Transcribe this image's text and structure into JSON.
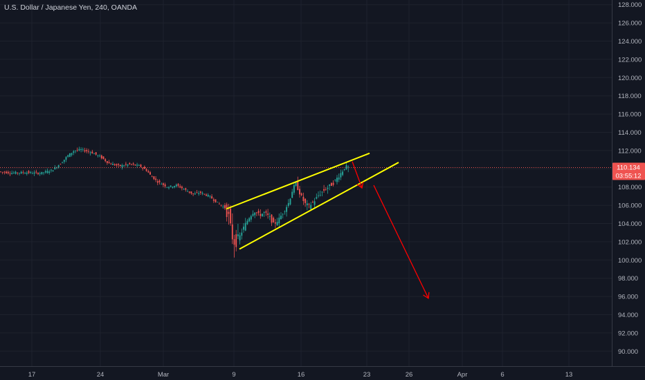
{
  "symbol_title": "U.S. Dollar / Japanese Yen, 240, OANDA",
  "colors": {
    "background": "#131722",
    "grid": "#1e222d",
    "axis_text": "#b2b5be",
    "up": "#26a69a",
    "down": "#ef5350",
    "trendline": "#ffff00",
    "arrow": "#ff0000",
    "price_line": "#ef5350"
  },
  "chart_data": {
    "type": "candlestick",
    "instrument": "USDJPY",
    "timeframe": "240",
    "source": "OANDA",
    "y_axis": {
      "ticks": [
        "128.000",
        "126.000",
        "124.000",
        "122.000",
        "120.000",
        "118.000",
        "116.000",
        "114.000",
        "112.000",
        "110.000",
        "108.000",
        "106.000",
        "104.000",
        "102.000",
        "100.000",
        "98.000",
        "96.000",
        "94.000",
        "92.000",
        "90.000"
      ],
      "range": [
        88.5,
        128.6
      ]
    },
    "x_axis": {
      "ticks": [
        "17",
        "24",
        "Mar",
        "9",
        "16",
        "23",
        "26",
        "Apr",
        "6",
        "13"
      ]
    },
    "last_price": {
      "value": "110.134",
      "countdown": "03:55:12"
    },
    "price_path": [
      [
        0,
        109.7
      ],
      [
        18,
        109.55
      ],
      [
        40,
        109.6
      ],
      [
        60,
        109.5
      ],
      [
        78,
        109.85
      ],
      [
        92,
        110.7
      ],
      [
        100,
        111.4
      ],
      [
        110,
        112.0
      ],
      [
        120,
        112.1
      ],
      [
        135,
        111.8
      ],
      [
        148,
        111.3
      ],
      [
        160,
        110.6
      ],
      [
        175,
        110.3
      ],
      [
        190,
        110.5
      ],
      [
        205,
        110.3
      ],
      [
        215,
        109.8
      ],
      [
        220,
        109.3
      ],
      [
        230,
        108.6
      ],
      [
        245,
        108.0
      ],
      [
        258,
        108.2
      ],
      [
        270,
        107.7
      ],
      [
        282,
        107.2
      ],
      [
        292,
        107.4
      ],
      [
        305,
        107.0
      ],
      [
        318,
        106.2
      ],
      [
        328,
        105.7
      ],
      [
        333,
        104.8
      ],
      [
        338,
        102.6
      ],
      [
        342,
        101.8
      ],
      [
        348,
        102.4
      ],
      [
        355,
        103.6
      ],
      [
        362,
        104.6
      ],
      [
        370,
        105.4
      ],
      [
        377,
        104.9
      ],
      [
        385,
        105.2
      ],
      [
        393,
        104.6
      ],
      [
        398,
        103.9
      ],
      [
        406,
        104.5
      ],
      [
        413,
        105.4
      ],
      [
        420,
        106.3
      ],
      [
        425,
        107.6
      ],
      [
        430,
        108.4
      ],
      [
        436,
        107.3
      ],
      [
        443,
        106.2
      ],
      [
        449,
        105.9
      ],
      [
        456,
        106.4
      ],
      [
        463,
        107.1
      ],
      [
        470,
        107.6
      ],
      [
        477,
        108.0
      ],
      [
        484,
        108.4
      ],
      [
        490,
        109.0
      ],
      [
        497,
        109.7
      ],
      [
        502,
        110.3
      ],
      [
        504,
        110.13
      ]
    ],
    "annotations": {
      "upper_trendline": {
        "from": [
          327,
          105.6
        ],
        "to": [
          534,
          111.7
        ]
      },
      "lower_trendline": {
        "from": [
          346,
          101.2
        ],
        "to": [
          576,
          110.7
        ]
      },
      "arrow_1": {
        "from": [
          509,
          110.8
        ],
        "to": [
          523,
          107.9
        ]
      },
      "arrow_2": {
        "from": [
          540,
          108.2
        ],
        "to": [
          619,
          95.8
        ]
      }
    }
  }
}
